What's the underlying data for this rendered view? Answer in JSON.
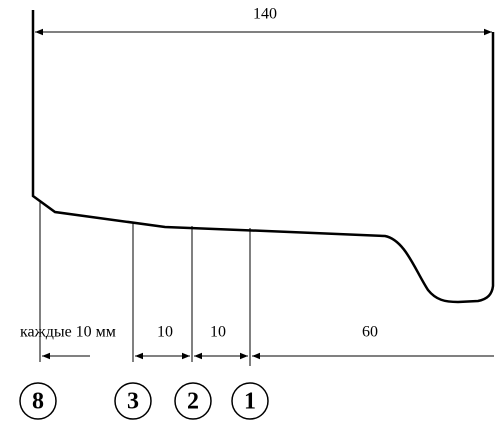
{
  "dimensions": {
    "overall": "140",
    "spacing": "каждые 10 мм",
    "first": "10",
    "second": "10",
    "third": "60"
  },
  "sections": [
    "8",
    "3",
    "2",
    "1"
  ]
}
